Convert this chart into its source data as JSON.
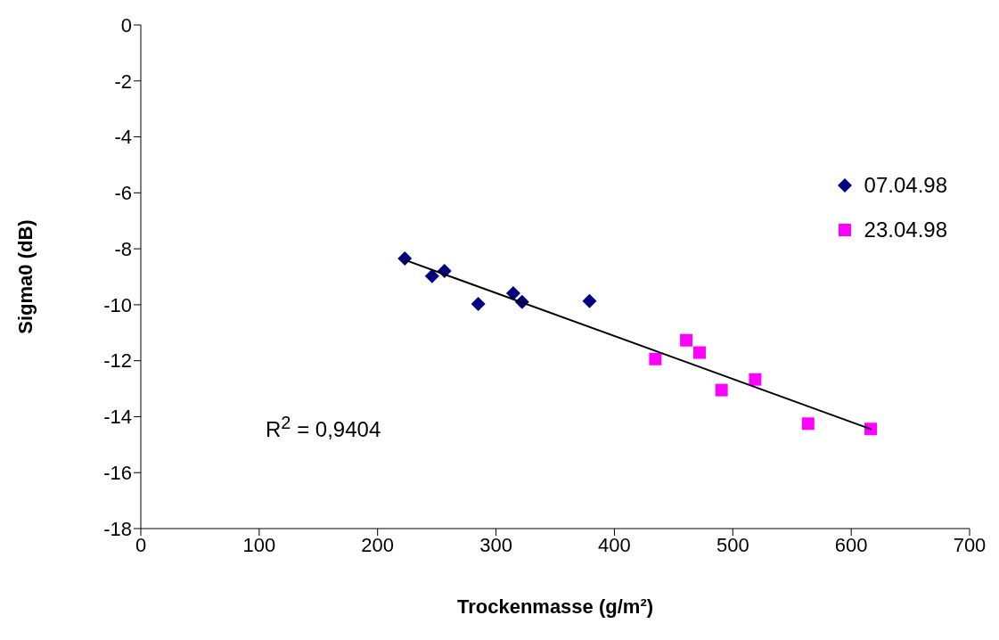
{
  "chart_data": {
    "type": "scatter",
    "xlabel": "Trockenmasse (g/m²)",
    "ylabel": "Sigma0 (dB)",
    "xlim": [
      0,
      700
    ],
    "xticks": [
      0,
      100,
      200,
      300,
      400,
      500,
      600,
      700
    ],
    "ylim": [
      -18,
      0
    ],
    "yticks": [
      -18,
      -16,
      -14,
      -12,
      -10,
      -8,
      -6,
      -4,
      -2,
      0
    ],
    "grid": false,
    "legend": "right",
    "annotations": [
      "R$^{2}$ = 0,9404"
    ],
    "series": [
      {
        "name": "07.04.98",
        "color": "#000080",
        "marker": "diamond",
        "x": [
          223,
          246,
          256.5,
          285,
          314.6,
          322,
          379
        ],
        "values": [
          -8.35,
          -8.98,
          -8.79,
          -9.97,
          -9.59,
          -9.9,
          -9.87
        ]
      },
      {
        "name": "23.04.98",
        "color": "#ff00ff",
        "marker": "square",
        "x": [
          434.6,
          460.7,
          471.9,
          490.5,
          518.9,
          563.6,
          616.5
        ],
        "values": [
          -11.94,
          -11.27,
          -11.71,
          -13.05,
          -12.67,
          -14.25,
          -14.44
        ]
      },
      {
        "type": "line",
        "color": "#000000",
        "line_style": "solid",
        "x": [
          223,
          617
        ],
        "values": [
          -8.4,
          -14.45
        ]
      }
    ]
  }
}
